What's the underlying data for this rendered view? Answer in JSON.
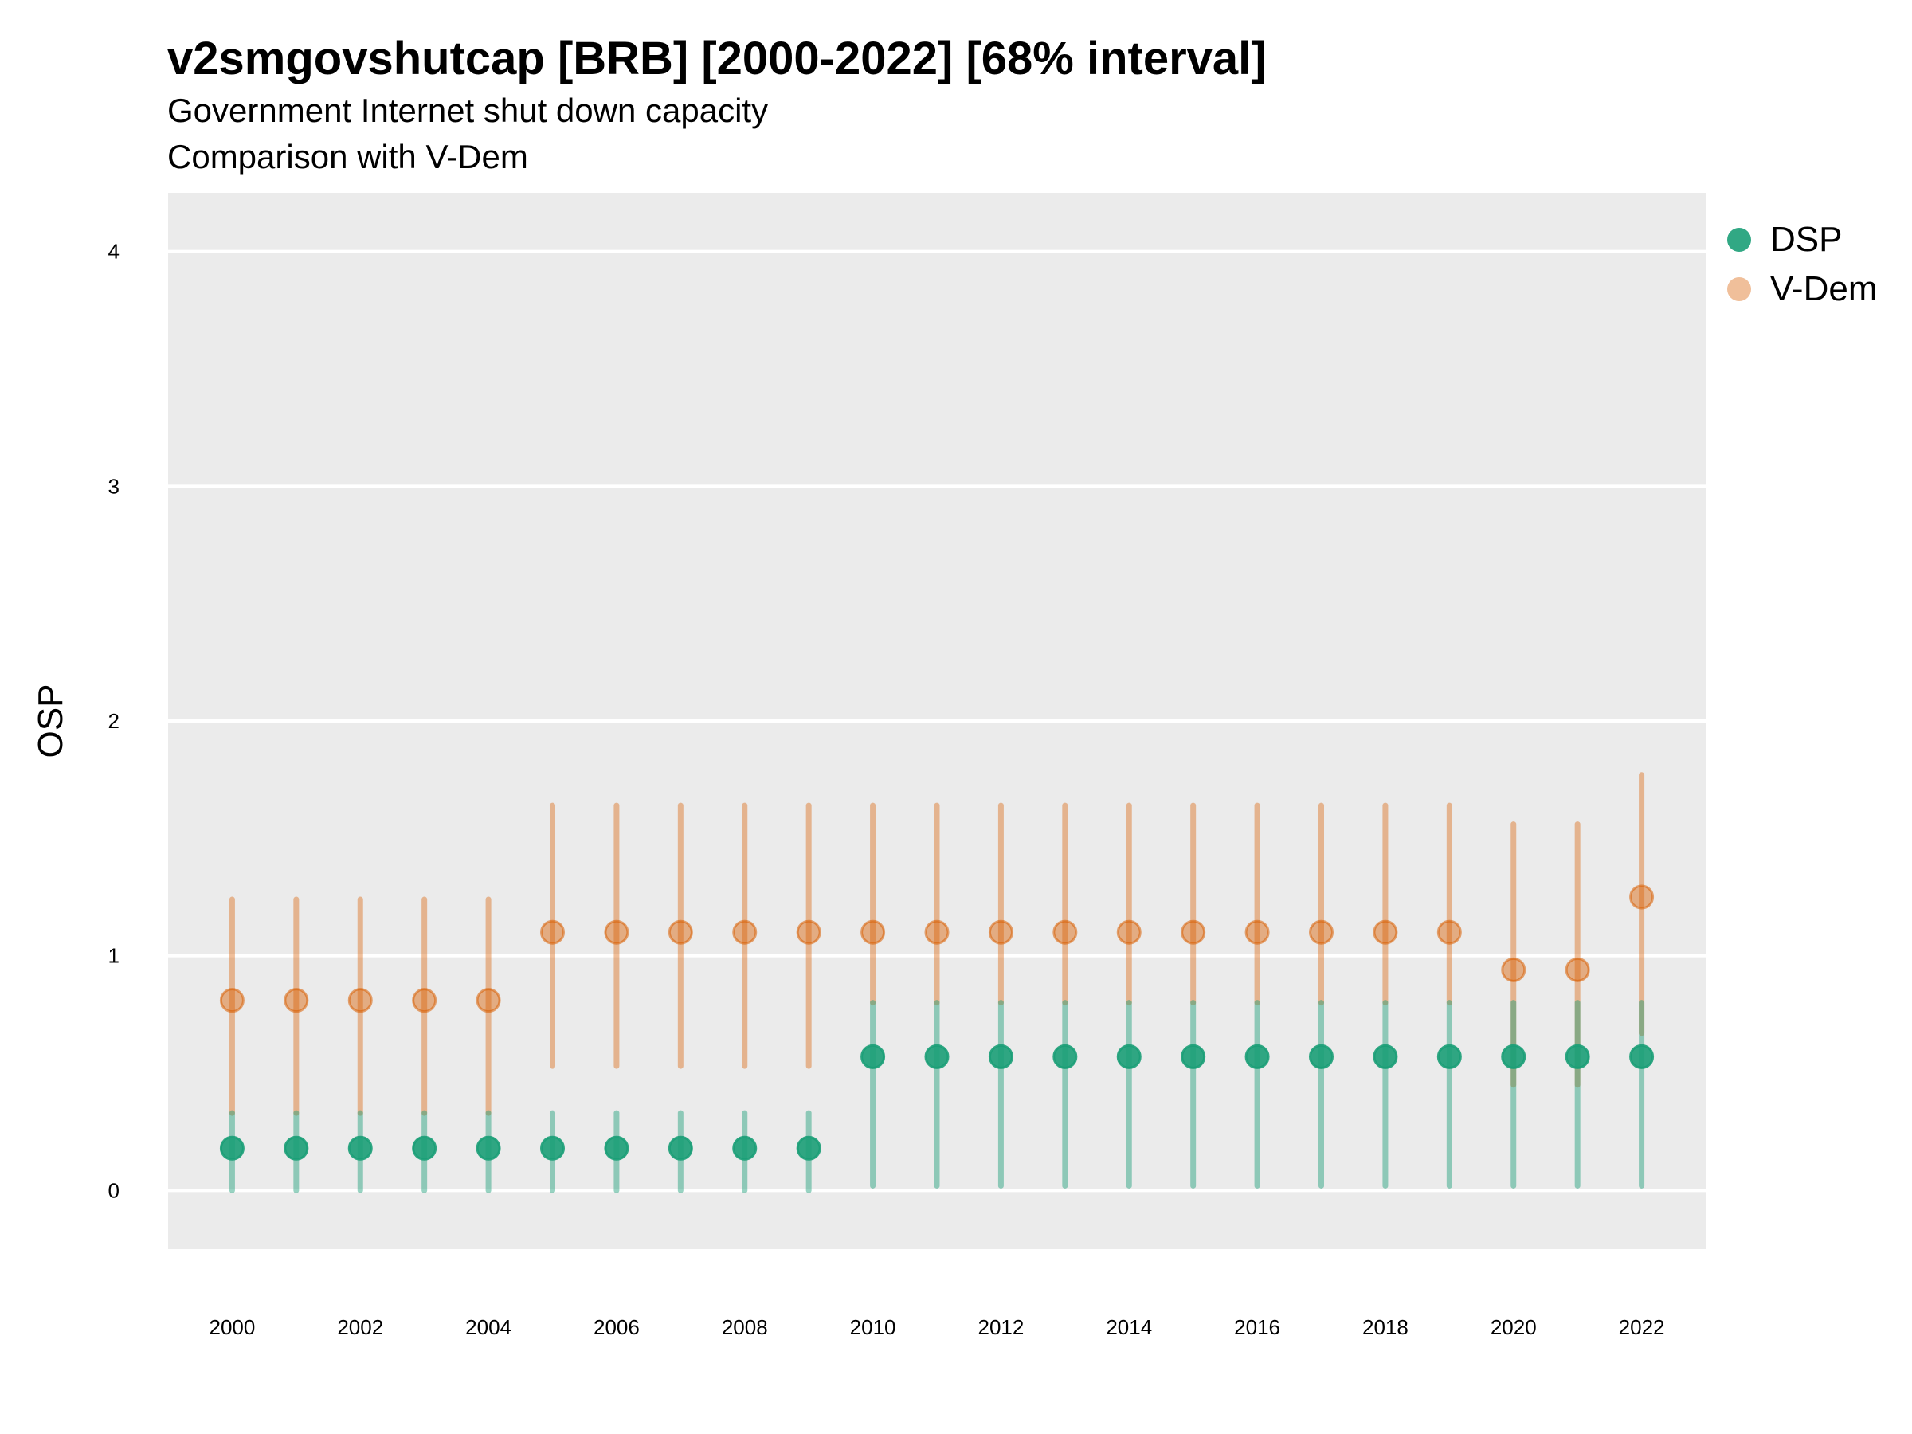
{
  "title": "v2smgovshutcap [BRB] [2000-2022] [68% interval]",
  "subtitle_lines": [
    "Government Internet shut down capacity",
    "Comparison with V-Dem"
  ],
  "colors": {
    "dsp": "#1b9e77",
    "vdem": "#d95f02",
    "panel": "#ebebeb",
    "grid": "#ffffff"
  },
  "legend": [
    {
      "name": "DSP",
      "color": "#1b9e77",
      "alpha": 0.9
    },
    {
      "name": "V-Dem",
      "color": "#d95f02",
      "alpha": 0.4
    }
  ],
  "chart_data": {
    "type": "scatter",
    "title": "v2smgovshutcap [BRB] [2000-2022] [68% interval]",
    "xlabel": "",
    "ylabel": "OSP",
    "ylim": [
      -0.25,
      4.25
    ],
    "xlim": [
      1999.0,
      2023.0
    ],
    "y_ticks": [
      0,
      1,
      2,
      3,
      4
    ],
    "x_ticks": [
      2000,
      2002,
      2004,
      2006,
      2008,
      2010,
      2012,
      2014,
      2016,
      2018,
      2020,
      2022
    ],
    "grid": true,
    "legend_position": "right",
    "interval": "68%",
    "series": [
      {
        "name": "DSP",
        "x": [
          2000,
          2001,
          2002,
          2003,
          2004,
          2005,
          2006,
          2007,
          2008,
          2009,
          2010,
          2011,
          2012,
          2013,
          2014,
          2015,
          2016,
          2017,
          2018,
          2019,
          2020,
          2021,
          2022
        ],
        "y": [
          0.18,
          0.18,
          0.18,
          0.18,
          0.18,
          0.18,
          0.18,
          0.18,
          0.18,
          0.18,
          0.57,
          0.57,
          0.57,
          0.57,
          0.57,
          0.57,
          0.57,
          0.57,
          0.57,
          0.57,
          0.57,
          0.57,
          0.57
        ],
        "lower": [
          0.0,
          0.0,
          0.0,
          0.0,
          0.0,
          0.0,
          0.0,
          0.0,
          0.0,
          0.0,
          0.02,
          0.02,
          0.02,
          0.02,
          0.02,
          0.02,
          0.02,
          0.02,
          0.02,
          0.02,
          0.02,
          0.02,
          0.02
        ],
        "upper": [
          0.33,
          0.33,
          0.33,
          0.33,
          0.33,
          0.33,
          0.33,
          0.33,
          0.33,
          0.33,
          0.8,
          0.8,
          0.8,
          0.8,
          0.8,
          0.8,
          0.8,
          0.8,
          0.8,
          0.8,
          0.8,
          0.8,
          0.8
        ]
      },
      {
        "name": "V-Dem",
        "x": [
          2000,
          2001,
          2002,
          2003,
          2004,
          2005,
          2006,
          2007,
          2008,
          2009,
          2010,
          2011,
          2012,
          2013,
          2014,
          2015,
          2016,
          2017,
          2018,
          2019,
          2020,
          2021,
          2022
        ],
        "y": [
          0.81,
          0.81,
          0.81,
          0.81,
          0.81,
          1.1,
          1.1,
          1.1,
          1.1,
          1.1,
          1.1,
          1.1,
          1.1,
          1.1,
          1.1,
          1.1,
          1.1,
          1.1,
          1.1,
          1.1,
          0.94,
          0.94,
          1.25
        ],
        "lower": [
          0.33,
          0.33,
          0.33,
          0.33,
          0.33,
          0.53,
          0.53,
          0.53,
          0.53,
          0.53,
          0.8,
          0.8,
          0.8,
          0.8,
          0.8,
          0.8,
          0.8,
          0.8,
          0.8,
          0.8,
          0.45,
          0.45,
          0.67
        ],
        "upper": [
          1.24,
          1.24,
          1.24,
          1.24,
          1.24,
          1.64,
          1.64,
          1.64,
          1.64,
          1.64,
          1.64,
          1.64,
          1.64,
          1.64,
          1.64,
          1.64,
          1.64,
          1.64,
          1.64,
          1.64,
          1.56,
          1.56,
          1.77
        ]
      }
    ]
  }
}
